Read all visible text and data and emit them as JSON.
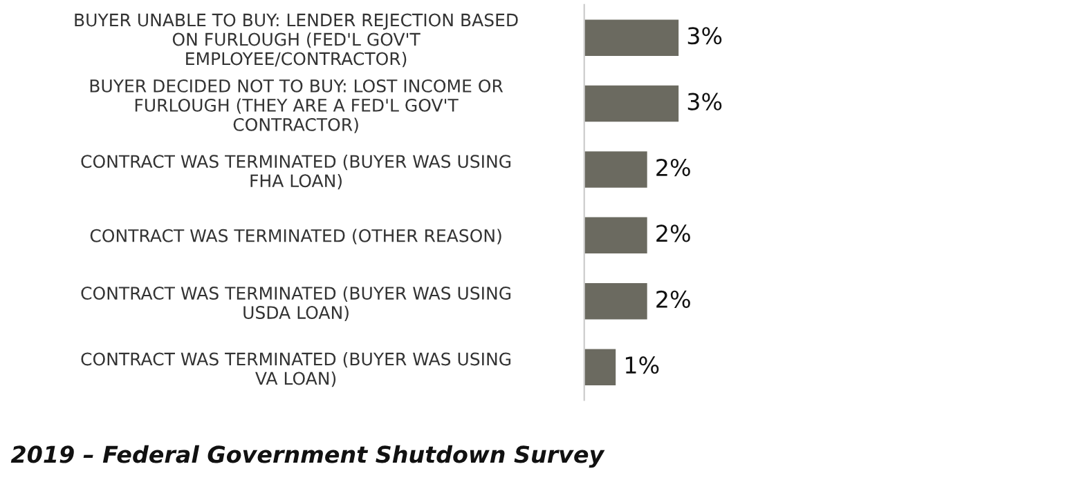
{
  "chart_data": {
    "type": "bar",
    "orientation": "horizontal",
    "categories": [
      "BUYER UNABLE TO BUY: LENDER REJECTION BASED\nON FURLOUGH (FED'L GOV'T\nEMPLOYEE/CONTRACTOR)",
      "BUYER DECIDED NOT TO BUY: LOST INCOME OR\nFURLOUGH (THEY ARE A FED'L GOV'T\nCONTRACTOR)",
      "CONTRACT WAS TERMINATED (BUYER WAS USING\nFHA LOAN)",
      "CONTRACT WAS TERMINATED (OTHER REASON)",
      "CONTRACT WAS TERMINATED (BUYER WAS USING\nUSDA LOAN)",
      "CONTRACT WAS TERMINATED (BUYER WAS USING\nVA LOAN)"
    ],
    "values": [
      3,
      3,
      2,
      2,
      2,
      1
    ],
    "value_labels": [
      "3%",
      "3%",
      "2%",
      "2%",
      "2%",
      "1%"
    ],
    "color": "#6b6a60",
    "tick_labels": "y",
    "grid": false,
    "legend": false,
    "annotations": [
      "2019 – Federal Government Shutdown Survey"
    ]
  }
}
